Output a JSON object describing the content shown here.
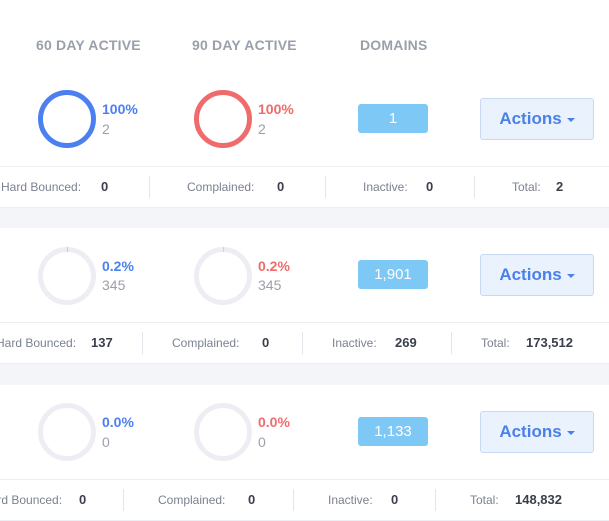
{
  "header": {
    "col_60day": "60 DAY ACTIVE",
    "col_90day": "90 DAY ACTIVE",
    "col_domains": "DOMAINS"
  },
  "colors": {
    "blue": "#4a80f0",
    "red": "#f06b6b",
    "ring_track": "#eceef4",
    "badge": "#7ec8f5"
  },
  "labels": {
    "actions": "Actions",
    "hard_bounced": "Hard Bounced:",
    "complained": "Complained:",
    "inactive": "Inactive:",
    "total": "Total:"
  },
  "rows": [
    {
      "active60": {
        "percent": "100%",
        "count": "2",
        "fraction": 1.0
      },
      "active90": {
        "percent": "100%",
        "count": "2",
        "fraction": 1.0
      },
      "domains": "1",
      "stats": {
        "hard_bounced": "0",
        "complained": "0",
        "inactive": "0",
        "total": "2"
      }
    },
    {
      "active60": {
        "percent": "0.2%",
        "count": "345",
        "fraction": 0.002
      },
      "active90": {
        "percent": "0.2%",
        "count": "345",
        "fraction": 0.002
      },
      "domains": "1,901",
      "stats": {
        "hard_bounced": "137",
        "complained": "0",
        "inactive": "269",
        "total": "173,512"
      }
    },
    {
      "active60": {
        "percent": "0.0%",
        "count": "0",
        "fraction": 0.0
      },
      "active90": {
        "percent": "0.0%",
        "count": "0",
        "fraction": 0.0
      },
      "domains": "1,133",
      "stats": {
        "hard_bounced": "0",
        "complained": "0",
        "inactive": "0",
        "total": "148,832"
      }
    }
  ]
}
